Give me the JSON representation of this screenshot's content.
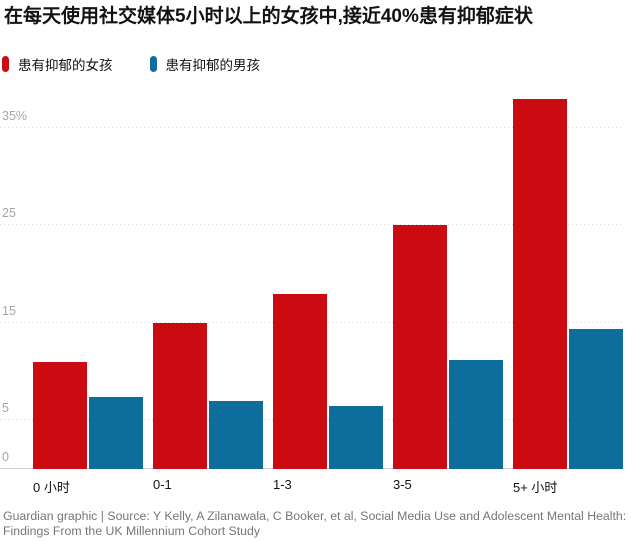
{
  "page": {
    "title": "在每天使用社交媒体5小时以上的女孩中,接近40%患有抑郁症状",
    "source_line1": "Guardian graphic | Source: Y Kelly, A Zilanawala, C Booker, et al, Social Media Use and Adolescent Mental Health:",
    "source_line2": "Findings From the UK Millennium Cohort Study"
  },
  "chart_data": {
    "type": "bar",
    "title": "在每天使用社交媒体5小时以上的女孩中,接近40%患有抑郁症状",
    "categories": [
      "0 小时",
      "0-1",
      "1-3",
      "3-5",
      "5+ 小时"
    ],
    "series": [
      {
        "name": "患有抑郁的女孩",
        "color": "#cb0a11",
        "values": [
          11,
          15,
          18,
          25,
          38
        ]
      },
      {
        "name": "患有抑郁的男孩",
        "color": "#0d6e9e",
        "values": [
          7.4,
          7,
          6.5,
          11.2,
          14.4
        ]
      }
    ],
    "xlabel": "",
    "ylabel": "",
    "ylim": [
      0,
      38.9
    ],
    "yticks": [
      {
        "value": 0,
        "label": "0"
      },
      {
        "value": 5,
        "label": "5"
      },
      {
        "value": 15,
        "label": "15"
      },
      {
        "value": 25,
        "label": "25"
      },
      {
        "value": 35,
        "label": "35%"
      }
    ],
    "grid": "horizontal-dotted",
    "legend_position": "top-left",
    "unit": "percent"
  }
}
